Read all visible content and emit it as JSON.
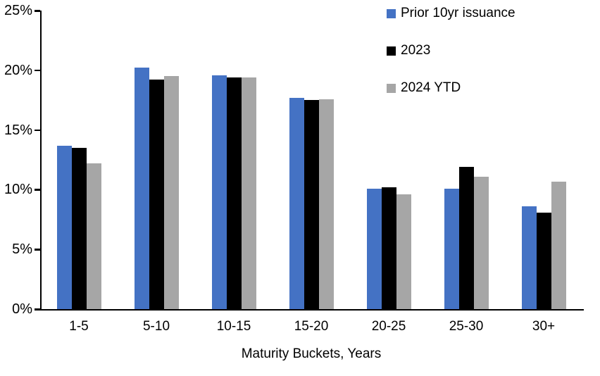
{
  "chart_data": {
    "type": "bar",
    "xlabel": "Maturity Buckets, Years",
    "ylabel": "",
    "ylim": [
      0,
      25
    ],
    "grid": false,
    "legend_position": "top-right",
    "categories": [
      "1-5",
      "5-10",
      "10-15",
      "15-20",
      "20-25",
      "25-30",
      "30+"
    ],
    "yticks": [
      {
        "label": "0%",
        "value": 0
      },
      {
        "label": "5%",
        "value": 5
      },
      {
        "label": "10%",
        "value": 10
      },
      {
        "label": "15%",
        "value": 15
      },
      {
        "label": "20%",
        "value": 20
      },
      {
        "label": "25%",
        "value": 25
      }
    ],
    "series": [
      {
        "name": "Prior 10yr issuance",
        "color": "#4472C4",
        "values": [
          13.7,
          20.2,
          19.6,
          17.7,
          10.1,
          10.1,
          8.6
        ]
      },
      {
        "name": "2023",
        "color": "#000000",
        "values": [
          13.5,
          19.2,
          19.4,
          17.5,
          10.2,
          11.9,
          8.1
        ]
      },
      {
        "name": "2024 YTD",
        "color": "#A6A6A6",
        "values": [
          12.2,
          19.5,
          19.4,
          17.6,
          9.6,
          11.1,
          10.7
        ]
      }
    ],
    "axis_color": "#000000",
    "background": "#FFFFFF"
  }
}
